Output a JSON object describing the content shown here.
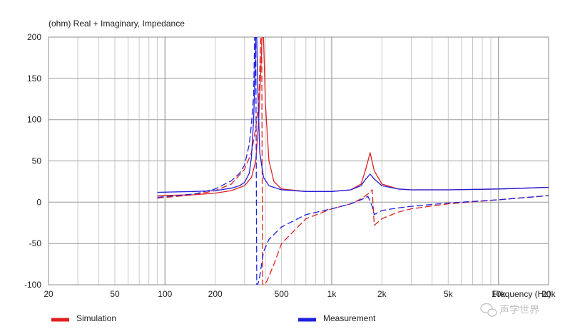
{
  "chart_data": {
    "type": "line",
    "title": "(ohm)  Real + Imaginary, Impedance",
    "x_scale": "log",
    "xlim": [
      20,
      20000
    ],
    "ylim": [
      -100,
      200
    ],
    "x_ticks": [
      20,
      50,
      100,
      200,
      500,
      1000,
      2000,
      5000,
      10000,
      20000
    ],
    "x_tick_labels": [
      "20",
      "50",
      "100",
      "200",
      "500",
      "1k",
      "2k",
      "5k",
      "10k",
      "20k"
    ],
    "y_ticks": [
      -100,
      -50,
      0,
      50,
      100,
      150,
      200
    ],
    "y_tick_labels": [
      "-100",
      "-50",
      "0",
      "50",
      "100",
      "150",
      "200"
    ],
    "xlabel": "Frequency (Hz)",
    "grid": true,
    "legend_position": "bottom",
    "series": [
      {
        "name": "Simulation",
        "color": "#e02020",
        "component": "real",
        "line": "solid",
        "x": [
          90,
          150,
          200,
          250,
          300,
          330,
          350,
          365,
          375,
          382,
          390,
          400,
          420,
          450,
          500,
          700,
          1000,
          1300,
          1500,
          1600,
          1700,
          1800,
          2000,
          2500,
          3000,
          5000,
          10000,
          20000
        ],
        "y": [
          8,
          9,
          11,
          14,
          20,
          30,
          50,
          100,
          160,
          200,
          200,
          120,
          50,
          25,
          16,
          13,
          13,
          15,
          22,
          40,
          60,
          38,
          22,
          16,
          15,
          15,
          16,
          18
        ]
      },
      {
        "name": "Simulation",
        "color": "#e02020",
        "component": "imaginary",
        "line": "dashed",
        "x": [
          90,
          150,
          200,
          250,
          300,
          330,
          350,
          365,
          375,
          380,
          385,
          395,
          410,
          450,
          500,
          700,
          1000,
          1300,
          1500,
          1650,
          1750,
          1800,
          2000,
          2500,
          3000,
          5000,
          10000,
          20000
        ],
        "y": [
          5,
          9,
          14,
          22,
          40,
          60,
          90,
          120,
          200,
          200,
          -100,
          -100,
          -95,
          -75,
          -50,
          -20,
          -8,
          -2,
          4,
          10,
          15,
          -28,
          -20,
          -12,
          -8,
          -2,
          3,
          8
        ]
      },
      {
        "name": "Measurement",
        "color": "#2020e0",
        "component": "real",
        "line": "solid",
        "x": [
          90,
          150,
          200,
          250,
          280,
          300,
          320,
          330,
          340,
          345,
          350,
          355,
          360,
          370,
          390,
          420,
          500,
          700,
          1000,
          1300,
          1500,
          1600,
          1700,
          1800,
          2000,
          2500,
          3000,
          5000,
          10000,
          20000
        ],
        "y": [
          12,
          13,
          14,
          17,
          20,
          24,
          35,
          55,
          100,
          140,
          200,
          200,
          140,
          60,
          30,
          20,
          15,
          13,
          13,
          15,
          20,
          28,
          34,
          28,
          20,
          16,
          15,
          15,
          16,
          18
        ]
      },
      {
        "name": "Measurement",
        "color": "#2020e0",
        "component": "imaginary",
        "line": "dashed",
        "x": [
          90,
          150,
          200,
          250,
          280,
          300,
          320,
          330,
          340,
          345,
          350,
          355,
          360,
          370,
          390,
          420,
          500,
          700,
          1000,
          1300,
          1500,
          1650,
          1750,
          1800,
          2000,
          2500,
          3000,
          5000,
          10000,
          20000
        ],
        "y": [
          6,
          10,
          16,
          26,
          35,
          45,
          70,
          95,
          130,
          200,
          200,
          -100,
          -100,
          -90,
          -60,
          -45,
          -30,
          -15,
          -8,
          -2,
          3,
          7,
          -5,
          -15,
          -10,
          -7,
          -5,
          -1,
          3,
          8
        ]
      }
    ],
    "legend": [
      {
        "label": "Simulation",
        "color": "#e02020"
      },
      {
        "label": "Measurement",
        "color": "#2020e0"
      }
    ]
  },
  "watermark": {
    "text": "声学世界"
  }
}
